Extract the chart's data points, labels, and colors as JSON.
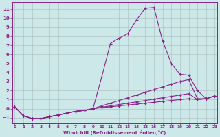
{
  "bg_color": "#cce8e8",
  "grid_color": "#aabbbb",
  "line_color": "#882288",
  "xlabel": "Windchill (Refroidissement éolien,°C)",
  "x_ticks": [
    0,
    1,
    2,
    3,
    4,
    5,
    6,
    7,
    8,
    9,
    10,
    11,
    12,
    13,
    14,
    15,
    16,
    17,
    18,
    19,
    20,
    21,
    22,
    23
  ],
  "y_ticks": [
    -1,
    0,
    1,
    2,
    3,
    4,
    5,
    6,
    7,
    8,
    9,
    10,
    11
  ],
  "xlim": [
    -0.3,
    23.3
  ],
  "ylim": [
    -1.6,
    11.8
  ],
  "series": [
    [
      0.2,
      -0.8,
      -1.1,
      -1.1,
      -0.9,
      -0.7,
      -0.5,
      -0.3,
      -0.2,
      0.0,
      3.5,
      7.2,
      7.8,
      8.3,
      9.8,
      11.1,
      11.2,
      7.5,
      5.0,
      3.8,
      3.7,
      2.0,
      1.1,
      1.4
    ],
    [
      0.2,
      -0.8,
      -1.1,
      -1.1,
      -0.9,
      -0.7,
      -0.5,
      -0.3,
      -0.2,
      0.0,
      0.3,
      0.6,
      0.9,
      1.2,
      1.5,
      1.8,
      2.1,
      2.4,
      2.7,
      3.0,
      3.2,
      1.1,
      1.1,
      1.4
    ],
    [
      0.2,
      -0.8,
      -1.1,
      -1.1,
      -0.9,
      -0.7,
      -0.5,
      -0.3,
      -0.2,
      0.0,
      0.15,
      0.3,
      0.45,
      0.6,
      0.75,
      0.9,
      1.05,
      1.2,
      1.35,
      1.5,
      1.65,
      1.0,
      1.1,
      1.4
    ],
    [
      0.2,
      -0.8,
      -1.1,
      -1.1,
      -0.9,
      -0.7,
      -0.5,
      -0.3,
      -0.2,
      0.0,
      0.1,
      0.2,
      0.3,
      0.4,
      0.5,
      0.6,
      0.7,
      0.8,
      0.9,
      1.0,
      1.1,
      1.0,
      1.1,
      1.4
    ]
  ]
}
